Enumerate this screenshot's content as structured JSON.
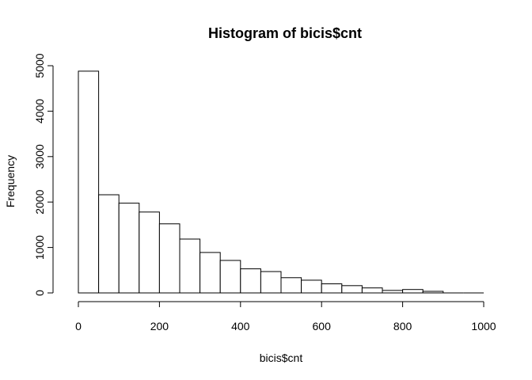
{
  "chart_data": {
    "type": "bar",
    "title": "Histogram of bicis$cnt",
    "xlabel": "bicis$cnt",
    "ylabel": "Frequency",
    "bins": [
      {
        "x0": 0,
        "x1": 50,
        "count": 4880
      },
      {
        "x0": 50,
        "x1": 100,
        "count": 2160
      },
      {
        "x0": 100,
        "x1": 150,
        "count": 1975
      },
      {
        "x0": 150,
        "x1": 200,
        "count": 1780
      },
      {
        "x0": 200,
        "x1": 250,
        "count": 1520
      },
      {
        "x0": 250,
        "x1": 300,
        "count": 1185
      },
      {
        "x0": 300,
        "x1": 350,
        "count": 890
      },
      {
        "x0": 350,
        "x1": 400,
        "count": 715
      },
      {
        "x0": 400,
        "x1": 450,
        "count": 530
      },
      {
        "x0": 450,
        "x1": 500,
        "count": 470
      },
      {
        "x0": 500,
        "x1": 550,
        "count": 335
      },
      {
        "x0": 550,
        "x1": 600,
        "count": 280
      },
      {
        "x0": 600,
        "x1": 650,
        "count": 200
      },
      {
        "x0": 650,
        "x1": 700,
        "count": 160
      },
      {
        "x0": 700,
        "x1": 750,
        "count": 110
      },
      {
        "x0": 750,
        "x1": 800,
        "count": 55
      },
      {
        "x0": 800,
        "x1": 850,
        "count": 75
      },
      {
        "x0": 850,
        "x1": 900,
        "count": 35
      },
      {
        "x0": 900,
        "x1": 950,
        "count": 0
      },
      {
        "x0": 950,
        "x1": 1000,
        "count": 0
      }
    ],
    "xlim": [
      0,
      1000
    ],
    "ylim": [
      0,
      5000
    ],
    "x_ticks": [
      "0",
      "200",
      "400",
      "600",
      "800",
      "1000"
    ],
    "y_ticks": [
      "0",
      "1000",
      "2000",
      "3000",
      "4000",
      "5000"
    ],
    "grid": false
  }
}
